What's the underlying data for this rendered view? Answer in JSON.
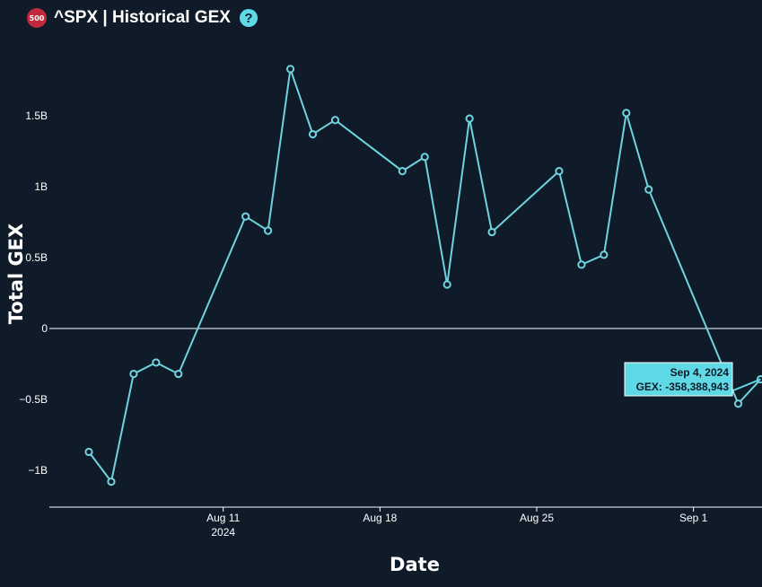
{
  "header": {
    "badge": "500",
    "title": "^SPX | Historical GEX",
    "help_icon": "question-circle-icon",
    "help_glyph": "?"
  },
  "colors": {
    "background": "#0f1b29",
    "line": "#6fd3de",
    "badge": "#c0283b",
    "tooltip_bg": "#5fd9e6"
  },
  "tooltip": {
    "date": "Sep 4, 2024",
    "value": "GEX: -358,388,943"
  },
  "chart_data": {
    "type": "line",
    "title": "",
    "xlabel": "Date",
    "ylabel": "Total GEX",
    "ylim": [
      -1.25,
      1.9
    ],
    "yticks": [
      {
        "value": 1.5,
        "label": "1.5B"
      },
      {
        "value": 1,
        "label": "1B"
      },
      {
        "value": 0.5,
        "label": "0.5B"
      },
      {
        "value": 0,
        "label": "0"
      },
      {
        "value": -0.5,
        "label": "−0.5B"
      },
      {
        "value": -1,
        "label": "−1B"
      }
    ],
    "xticks": [
      {
        "date": "2024-08-11",
        "label": "Aug 11",
        "sublabel": "2024"
      },
      {
        "date": "2024-08-18",
        "label": "Aug 18",
        "sublabel": ""
      },
      {
        "date": "2024-08-25",
        "label": "Aug 25",
        "sublabel": ""
      },
      {
        "date": "2024-09-01",
        "label": "Sep 1",
        "sublabel": ""
      }
    ],
    "x_range": [
      "2024-08-05",
      "2024-09-05"
    ],
    "series": [
      {
        "points": [
          {
            "x": "2024-08-05",
            "y": -0.87
          },
          {
            "x": "2024-08-06",
            "y": -1.08
          },
          {
            "x": "2024-08-07",
            "y": -0.32
          },
          {
            "x": "2024-08-08",
            "y": -0.24
          },
          {
            "x": "2024-08-09",
            "y": -0.32
          },
          {
            "x": "2024-08-12",
            "y": 0.79
          },
          {
            "x": "2024-08-13",
            "y": 0.69
          },
          {
            "x": "2024-08-14",
            "y": 1.83
          },
          {
            "x": "2024-08-15",
            "y": 1.37
          },
          {
            "x": "2024-08-16",
            "y": 1.47
          },
          {
            "x": "2024-08-19",
            "y": 1.11
          },
          {
            "x": "2024-08-20",
            "y": 1.21
          },
          {
            "x": "2024-08-21",
            "y": 0.31
          },
          {
            "x": "2024-08-22",
            "y": 1.48
          },
          {
            "x": "2024-08-23",
            "y": 0.68
          },
          {
            "x": "2024-08-26",
            "y": 1.11
          },
          {
            "x": "2024-08-27",
            "y": 0.45
          },
          {
            "x": "2024-08-28",
            "y": 0.52
          },
          {
            "x": "2024-08-29",
            "y": 1.52
          },
          {
            "x": "2024-08-30",
            "y": 0.98
          },
          {
            "x": "2024-09-03",
            "y": -0.53
          },
          {
            "x": "2024-09-04",
            "y": -0.358
          }
        ]
      }
    ],
    "grid": false,
    "legend": "none"
  }
}
